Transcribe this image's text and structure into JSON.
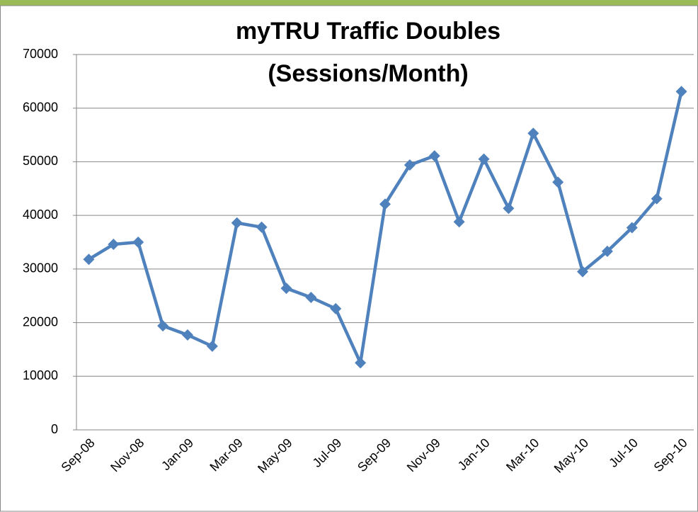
{
  "chart_data": {
    "type": "line",
    "title": [
      "myTRU Traffic Doubles",
      "(Sessions/Month)"
    ],
    "categories": [
      "Sep-08",
      null,
      "Nov-08",
      null,
      "Jan-09",
      null,
      "Mar-09",
      null,
      "May-09",
      null,
      "Jul-09",
      null,
      "Sep-09",
      null,
      "Nov-09",
      null,
      "Jan-10",
      null,
      "Mar-10",
      null,
      "May-10",
      null,
      "Jul-10",
      null,
      "Sep-10"
    ],
    "series": [
      {
        "name": "Sessions",
        "color": "#4f81bd",
        "values": [
          31800,
          34600,
          35000,
          19400,
          17700,
          15600,
          38600,
          37800,
          26400,
          24700,
          22600,
          12500,
          42100,
          49400,
          51100,
          38800,
          50500,
          41300,
          55300,
          46200,
          29500,
          33300,
          37700,
          43100,
          63100
        ]
      }
    ],
    "ylim": [
      0,
      70000
    ],
    "yticks": [
      0,
      10000,
      20000,
      30000,
      40000,
      50000,
      60000,
      70000
    ],
    "grid": true
  }
}
